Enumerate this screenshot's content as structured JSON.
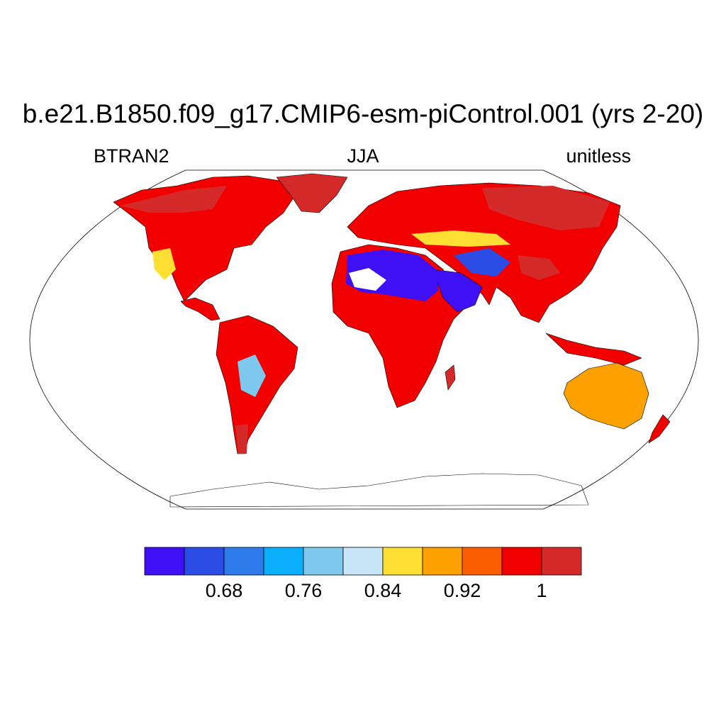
{
  "title": "b.e21.B1850.f09_g17.CMIP6-esm-piControl.001 (yrs 2-20)",
  "subtitle_left": "BTRAN2",
  "subtitle_center": "JJA",
  "subtitle_right": "unitless",
  "colorbar": {
    "colors": [
      "#4010f5",
      "#2c4ce6",
      "#2e7ceb",
      "#0aaefb",
      "#7ec8ee",
      "#c8e6f8",
      "#fddf33",
      "#fca100",
      "#fb5e00",
      "#f20000",
      "#d42a2a"
    ],
    "tick_labels": [
      "0.68",
      "0.76",
      "0.84",
      "0.92",
      "1"
    ]
  }
}
